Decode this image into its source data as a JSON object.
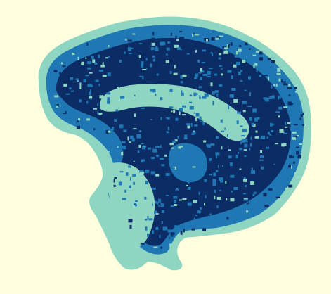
{
  "image": {
    "subject": "brain-mri-sagittal-segmentation",
    "icon_name": "brain-slice-icon",
    "colors": {
      "background": "#FFFFE0",
      "outer_tissue": "#8FD6C2",
      "mid_tissue": "#1F78B4",
      "dense_tissue": "#0C2C66",
      "corpus_callosum": "#8FD6C2"
    }
  }
}
